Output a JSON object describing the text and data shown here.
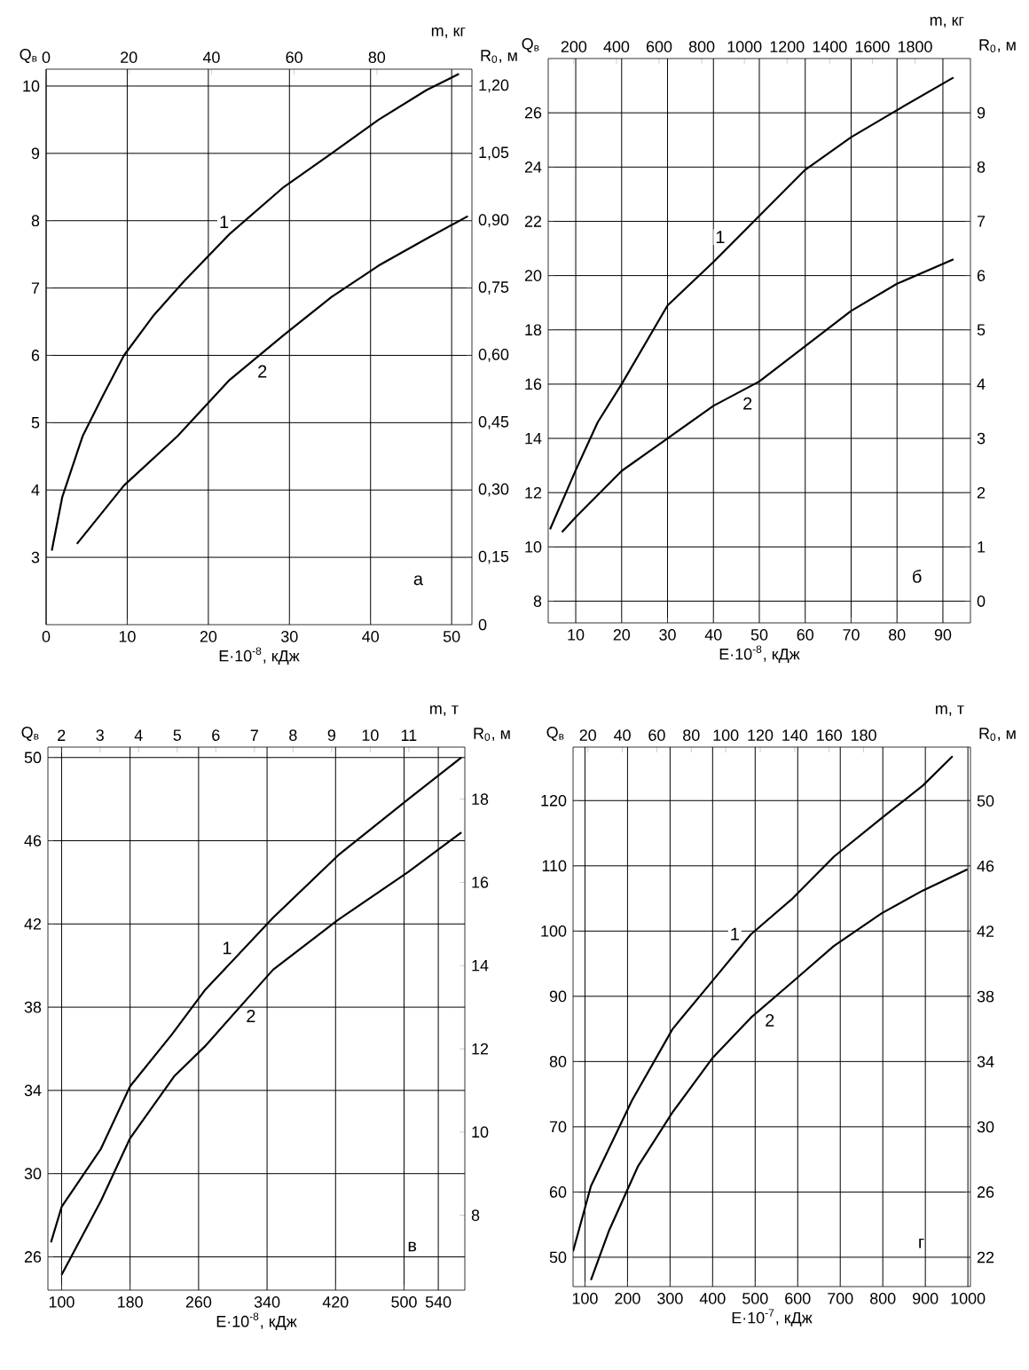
{
  "chart_data": [
    {
      "type": "line",
      "xlabel": "E·10$^{-8}$, кДж",
      "x2label": "m, кг",
      "ylabel": "Q$_{в}$",
      "y2label": "R$_{0}$, м",
      "grid": true,
      "xlim": [
        0,
        52.5
      ],
      "xticks": [
        0,
        10,
        20,
        30,
        40,
        50
      ],
      "x2lim": [
        0,
        103
      ],
      "x2ticks": [
        0,
        20,
        40,
        60,
        80
      ],
      "ylim": [
        2,
        10.25
      ],
      "yticks": [
        3,
        4,
        5,
        6,
        7,
        8,
        9,
        10
      ],
      "y2lim": [
        0,
        1.2375
      ],
      "y2ticks": [
        0,
        {
          "value": 0.15,
          "label": "0,15"
        },
        {
          "value": 0.3,
          "label": "0,30"
        },
        {
          "value": 0.45,
          "label": "0,45"
        },
        {
          "value": 0.6,
          "label": "0,60"
        },
        {
          "value": 0.75,
          "label": "0,75"
        },
        {
          "value": 0.9,
          "label": "0,90"
        },
        {
          "value": 1.05,
          "label": "1,05"
        },
        {
          "value": 1.2,
          "label": "1,20"
        }
      ],
      "series": [
        {
          "name": "1",
          "color": "#000000",
          "x": [
            0.7,
            2,
            4.5,
            7,
            9.6,
            13.3,
            17,
            22.6,
            29.3,
            35.2,
            41,
            46.9,
            50.9
          ],
          "values": [
            3.1,
            3.9,
            4.8,
            5.4,
            6.0,
            6.6,
            7.1,
            7.8,
            8.5,
            9.0,
            9.5,
            9.94,
            10.18
          ]
        },
        {
          "name": "2",
          "color": "#000000",
          "axis": "y2",
          "x": [
            3.8,
            9.6,
            16.2,
            22.6,
            29.3,
            35.2,
            41,
            46.9,
            52
          ],
          "values": [
            0.18,
            0.31,
            0.42,
            0.545,
            0.645,
            0.73,
            0.8,
            0.86,
            0.91
          ]
        }
      ],
      "annotations": [
        "а"
      ]
    },
    {
      "type": "line",
      "xlabel": "E·10$^{-8}$, кДж",
      "x2label": "m, кг",
      "ylabel": "Q$_{в}$",
      "y2label": "R$_{0}$, м",
      "grid": true,
      "xlim": [
        4,
        96
      ],
      "xticks": [
        10,
        20,
        30,
        40,
        50,
        60,
        70,
        80,
        90
      ],
      "x2lim": [
        80,
        2060
      ],
      "x2ticks": [
        200,
        400,
        600,
        800,
        1000,
        1200,
        1400,
        1600,
        1800
      ],
      "ylim": [
        7.2,
        28
      ],
      "yticks": [
        8,
        10,
        12,
        14,
        16,
        18,
        20,
        22,
        24,
        26
      ],
      "y2lim": [
        -0.4,
        10
      ],
      "y2ticks": [
        0,
        1,
        2,
        3,
        4,
        5,
        6,
        7,
        8,
        9
      ],
      "series": [
        {
          "name": "1",
          "color": "#000000",
          "x": [
            4.4,
            10,
            14.8,
            20,
            30,
            40,
            50,
            60,
            70,
            80,
            92.3
          ],
          "values": [
            10.65,
            12.83,
            14.6,
            16.0,
            18.9,
            20.5,
            22.2,
            23.9,
            25.1,
            26.1,
            27.3
          ]
        },
        {
          "name": "2",
          "color": "#000000",
          "axis": "y2",
          "x": [
            7,
            10,
            20,
            30,
            40,
            50,
            60,
            70,
            80,
            92.3
          ],
          "values": [
            1.27,
            1.55,
            2.4,
            3.0,
            3.6,
            4.05,
            4.7,
            5.35,
            5.85,
            6.3
          ]
        }
      ],
      "annotations": [
        "б"
      ]
    },
    {
      "type": "line",
      "xlabel": "E·10$^{-8}$, кДж",
      "x2label": "m, т",
      "ylabel": "Q$_{в}$",
      "y2label": "R$_{0}$, м",
      "grid": true,
      "xlim": [
        84,
        571
      ],
      "xticks": [
        100,
        180,
        260,
        340,
        420,
        500,
        540
      ],
      "x2lim": [
        1.65,
        12.45
      ],
      "x2ticks": [
        2,
        3,
        4,
        5,
        6,
        7,
        8,
        9,
        10,
        11
      ],
      "ylim": [
        24.4,
        50.5
      ],
      "yticks": [
        26,
        30,
        34,
        38,
        42,
        46,
        50
      ],
      "y2lim": [
        6.2,
        19.25
      ],
      "y2ticks": [
        8,
        10,
        12,
        14,
        16,
        18
      ],
      "series": [
        {
          "name": "1",
          "color": "#000000",
          "x": [
            87.6,
            100,
            146,
            180,
            229,
            267,
            347,
            423,
            505,
            567
          ],
          "values": [
            26.7,
            28.4,
            31.2,
            34.2,
            36.7,
            38.8,
            42.3,
            45.3,
            48.0,
            50.0
          ]
        },
        {
          "name": "2",
          "color": "#000000",
          "axis": "y2",
          "x": [
            100,
            146,
            180,
            232,
            267,
            347,
            423,
            505,
            567
          ],
          "values": [
            6.57,
            8.35,
            9.85,
            11.35,
            12.05,
            13.9,
            15.1,
            16.25,
            17.2
          ]
        }
      ],
      "annotations": [
        "в"
      ]
    },
    {
      "type": "line",
      "xlabel": "E·10$^{-7}$, кДж",
      "x2label": "m, т",
      "ylabel": "Q$_{в}$",
      "y2label": "R$_{0}$, м",
      "grid": true,
      "xlim": [
        72,
        1006
      ],
      "xticks": [
        100,
        200,
        300,
        400,
        500,
        600,
        700,
        800,
        900,
        1000
      ],
      "x2lim": [
        11.4,
        242
      ],
      "x2ticks": [
        20,
        40,
        60,
        80,
        100,
        120,
        140,
        160,
        180
      ],
      "ylim": [
        45.5,
        128.2
      ],
      "yticks": [
        50,
        60,
        70,
        80,
        90,
        100,
        110,
        120
      ],
      "y2lim": [
        20.2,
        53.3
      ],
      "y2ticks": [
        22,
        26,
        30,
        34,
        38,
        42,
        46,
        50
      ],
      "series": [
        {
          "name": "1",
          "color": "#000000",
          "x": [
            72,
            114,
            211,
            306,
            399,
            490,
            588,
            685,
            797,
            894,
            964
          ],
          "values": [
            50.9,
            60.9,
            74.1,
            85.0,
            92.3,
            99.5,
            105,
            111.4,
            117.3,
            122.3,
            126.8
          ]
        },
        {
          "name": "2",
          "color": "#000000",
          "axis": "y2",
          "x": [
            114,
            156,
            225,
            306,
            399,
            490,
            588,
            685,
            797,
            894,
            999
          ],
          "values": [
            20.6,
            23.6,
            27.6,
            30.9,
            34.2,
            36.7,
            38.9,
            41.1,
            43.1,
            44.5,
            45.8
          ]
        }
      ],
      "annotations": [
        "г"
      ]
    }
  ]
}
